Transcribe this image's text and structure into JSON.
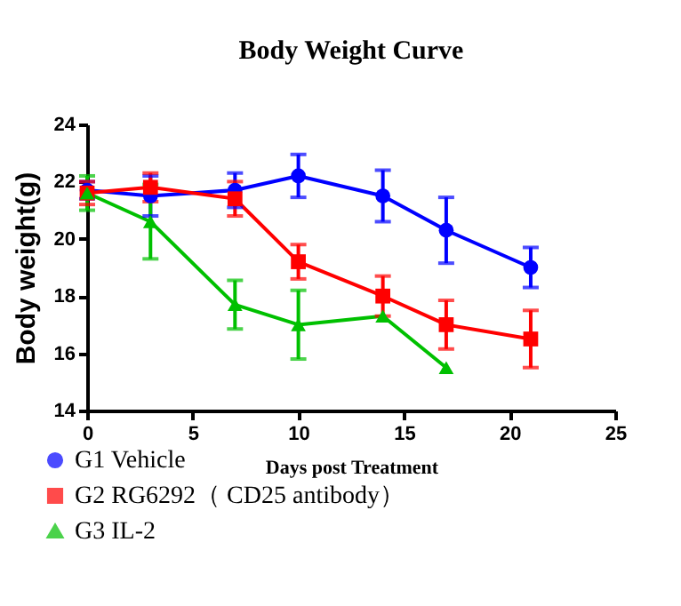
{
  "chart_data": {
    "type": "line",
    "title": "Body Weight Curve",
    "xlabel": "Days post Treatment",
    "ylabel": "Body weight(g)",
    "xlim": [
      0,
      25
    ],
    "xticks": [
      0,
      5,
      10,
      15,
      20,
      25
    ],
    "ylim": [
      14,
      24
    ],
    "yticks": [
      14,
      16,
      18,
      20,
      22,
      24
    ],
    "grid": false,
    "legend": "bottom left",
    "line_style": "solid",
    "series": [
      {
        "name": "G1 Vehicle",
        "color": "#0000ff",
        "marker": "circle",
        "x": [
          0,
          3,
          7,
          10,
          14,
          17,
          21
        ],
        "values": [
          21.7,
          21.5,
          21.7,
          22.2,
          21.5,
          20.3,
          19.0
        ],
        "errors": [
          0.3,
          0.7,
          0.6,
          0.75,
          0.9,
          1.15,
          0.7
        ]
      },
      {
        "name": "G2 RG6292（  CD25 antibody）",
        "color": "#ff0000",
        "marker": "square",
        "x": [
          0,
          3,
          7,
          10,
          14,
          17,
          21
        ],
        "values": [
          21.6,
          21.8,
          21.4,
          19.2,
          18.0,
          17.0,
          16.5
        ],
        "errors": [
          0.4,
          0.5,
          0.6,
          0.6,
          0.7,
          0.85,
          1.0
        ]
      },
      {
        "name": "G3 IL-2",
        "color": "#00c000",
        "marker": "triangle",
        "x": [
          0,
          3,
          7,
          10,
          14,
          17
        ],
        "values": [
          21.6,
          20.6,
          17.7,
          17.0,
          17.3,
          15.5
        ],
        "errors": [
          0.6,
          1.3,
          0.85,
          1.2,
          null,
          null
        ]
      }
    ]
  }
}
